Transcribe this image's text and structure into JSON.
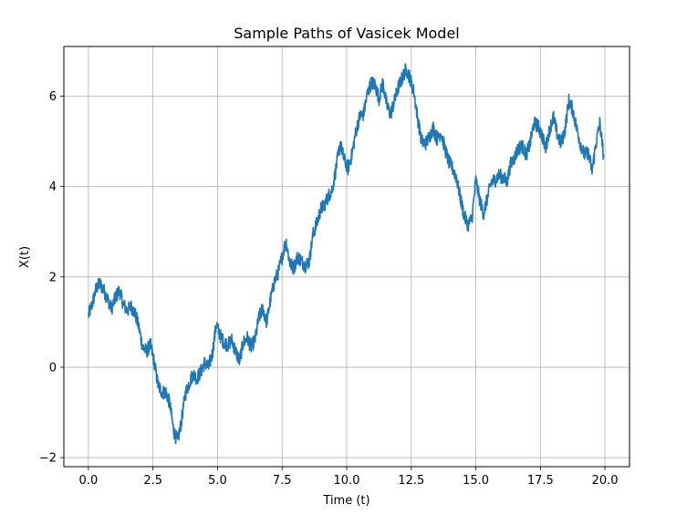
{
  "chart_data": {
    "type": "line",
    "title": "Sample Paths of Vasicek Model",
    "xlabel": "Time (t)",
    "ylabel": "X(t)",
    "xlim": [
      -0.95,
      20.95
    ],
    "ylim": [
      -2.2,
      7.1
    ],
    "xticks": [
      0.0,
      2.5,
      5.0,
      7.5,
      10.0,
      12.5,
      15.0,
      17.5,
      20.0
    ],
    "xtick_labels": [
      "0.0",
      "2.5",
      "5.0",
      "7.5",
      "10.0",
      "12.5",
      "15.0",
      "17.5",
      "20.0"
    ],
    "yticks": [
      -2,
      0,
      2,
      4,
      6
    ],
    "ytick_labels": [
      "−2",
      "0",
      "2",
      "4",
      "6"
    ],
    "grid": true,
    "series": [
      {
        "color": "#1f77b4",
        "x": [
          0.0,
          0.15,
          0.3,
          0.45,
          0.6,
          0.75,
          0.9,
          1.05,
          1.2,
          1.35,
          1.5,
          1.65,
          1.8,
          1.95,
          2.1,
          2.25,
          2.4,
          2.55,
          2.7,
          2.85,
          3.0,
          3.15,
          3.3,
          3.45,
          3.6,
          3.75,
          3.9,
          4.05,
          4.2,
          4.35,
          4.5,
          4.65,
          4.8,
          4.95,
          5.1,
          5.25,
          5.4,
          5.55,
          5.7,
          5.85,
          6.0,
          6.15,
          6.3,
          6.45,
          6.6,
          6.75,
          6.9,
          7.05,
          7.2,
          7.35,
          7.5,
          7.65,
          7.8,
          7.95,
          8.1,
          8.25,
          8.4,
          8.55,
          8.7,
          8.85,
          9.0,
          9.15,
          9.3,
          9.45,
          9.6,
          9.75,
          9.9,
          10.05,
          10.2,
          10.35,
          10.5,
          10.65,
          10.8,
          10.95,
          11.1,
          11.25,
          11.4,
          11.55,
          11.7,
          11.85,
          12.0,
          12.15,
          12.3,
          12.45,
          12.6,
          12.75,
          12.9,
          13.05,
          13.2,
          13.35,
          13.5,
          13.65,
          13.8,
          13.95,
          14.1,
          14.25,
          14.4,
          14.55,
          14.7,
          14.85,
          15.0,
          15.15,
          15.3,
          15.45,
          15.6,
          15.75,
          15.9,
          16.05,
          16.2,
          16.35,
          16.5,
          16.65,
          16.8,
          16.95,
          17.1,
          17.25,
          17.4,
          17.55,
          17.7,
          17.85,
          18.0,
          18.15,
          18.3,
          18.45,
          18.6,
          18.75,
          18.9,
          19.05,
          19.2,
          19.35,
          19.5,
          19.65,
          19.8,
          19.95
        ],
        "values": [
          1.15,
          1.4,
          1.75,
          1.85,
          1.7,
          1.5,
          1.3,
          1.55,
          1.7,
          1.4,
          1.25,
          1.35,
          1.2,
          0.9,
          0.45,
          0.35,
          0.5,
          0.1,
          -0.4,
          -0.55,
          -0.55,
          -0.8,
          -1.4,
          -1.65,
          -1.2,
          -0.6,
          -0.35,
          -0.15,
          -0.25,
          -0.1,
          0.1,
          0.0,
          0.3,
          0.95,
          0.7,
          0.55,
          0.5,
          0.6,
          0.35,
          0.15,
          0.55,
          0.65,
          0.45,
          0.6,
          1.1,
          1.3,
          1.0,
          1.5,
          1.9,
          2.1,
          2.45,
          2.8,
          2.3,
          2.2,
          2.45,
          2.35,
          2.25,
          2.35,
          2.95,
          3.2,
          3.5,
          3.6,
          3.8,
          3.95,
          4.45,
          4.95,
          4.6,
          4.4,
          4.7,
          5.2,
          5.55,
          5.6,
          6.05,
          6.3,
          6.25,
          5.95,
          6.3,
          5.8,
          5.6,
          5.9,
          6.2,
          6.4,
          6.6,
          6.4,
          6.1,
          5.5,
          5.0,
          4.95,
          5.1,
          5.3,
          5.05,
          5.2,
          4.85,
          4.55,
          4.4,
          4.2,
          3.75,
          3.35,
          3.15,
          3.3,
          4.15,
          3.7,
          3.4,
          3.75,
          4.1,
          4.15,
          4.25,
          4.2,
          4.1,
          4.5,
          4.65,
          4.85,
          4.9,
          4.7,
          4.95,
          5.4,
          5.35,
          5.15,
          4.85,
          5.25,
          5.55,
          5.15,
          4.95,
          5.25,
          5.9,
          5.7,
          5.3,
          4.95,
          4.7,
          4.75,
          4.35,
          4.95,
          5.4,
          4.65
        ]
      }
    ]
  }
}
